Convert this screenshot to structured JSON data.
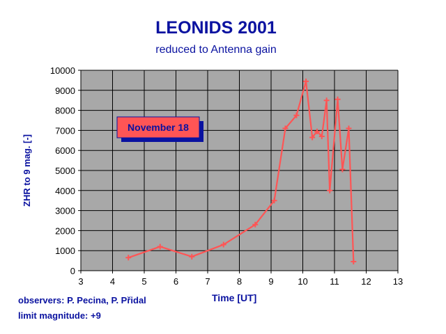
{
  "chart_data": {
    "type": "line",
    "title": "LEONIDS  2001",
    "subtitle": "reduced to Antenna gain",
    "xlabel": "Time [UT]",
    "ylabel": "ZHR to 9 mag. [-]",
    "xlim": [
      3,
      13
    ],
    "ylim": [
      0,
      10000
    ],
    "xticks": [
      3,
      4,
      5,
      6,
      7,
      8,
      9,
      10,
      11,
      12,
      13
    ],
    "yticks": [
      0,
      1000,
      2000,
      3000,
      4000,
      5000,
      6000,
      7000,
      8000,
      9000,
      10000
    ],
    "grid": true,
    "legend_box": "November 18",
    "series": [
      {
        "color": "#ff5555",
        "points": [
          [
            4.5,
            650
          ],
          [
            5.5,
            1200
          ],
          [
            6.5,
            700
          ],
          [
            7.5,
            1300
          ],
          [
            8.5,
            2300
          ],
          [
            9.1,
            3500
          ],
          [
            9.45,
            7100
          ],
          [
            9.8,
            7750
          ],
          [
            10.1,
            9450
          ],
          [
            10.3,
            6650
          ],
          [
            10.45,
            6950
          ],
          [
            10.6,
            6700
          ],
          [
            10.75,
            8500
          ],
          [
            10.85,
            4000
          ],
          [
            11.1,
            8550
          ],
          [
            11.25,
            5050
          ],
          [
            11.45,
            7100
          ],
          [
            11.6,
            450
          ]
        ]
      }
    ]
  },
  "footer": {
    "observers": "observers: P. Pecina, P. Přidal",
    "limit": "limit magnitude: +9"
  },
  "colors": {
    "plot_background": "#a8a8a8",
    "text": "#0a12a0",
    "line": "#ff5555",
    "legend_fill": "#ff5555",
    "legend_shadow": "#0a12a0"
  }
}
